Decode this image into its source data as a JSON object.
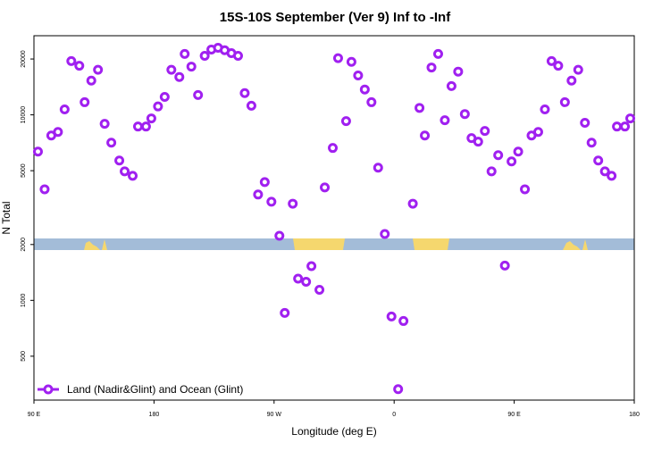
{
  "chart_data": {
    "type": "scatter",
    "title": "15S-10S September (Ver 9)   Inf to -Inf",
    "x_label": "Longitude (deg E)",
    "y_label": "N Total",
    "log_y": true,
    "legend": "bottom-left",
    "xlim": [
      90,
      540
    ],
    "xticks": [
      {
        "value": 90,
        "label": "90 E"
      },
      {
        "value": 180,
        "label": "180"
      },
      {
        "value": 270,
        "label": "90 W"
      },
      {
        "value": 360,
        "label": "0"
      },
      {
        "value": 450,
        "label": "90 E"
      },
      {
        "value": 540,
        "label": "180"
      }
    ],
    "ylim": [
      290,
      26700
    ],
    "yticks": [
      500,
      1000,
      2000,
      5000,
      10000,
      20000
    ],
    "x": [
      93,
      98,
      103,
      108,
      113,
      118,
      124,
      128,
      133,
      138,
      143,
      148,
      154,
      158,
      164,
      168,
      174,
      178,
      183,
      188,
      193,
      199,
      203,
      208,
      213,
      218,
      223,
      228,
      233,
      238,
      243,
      248,
      253,
      258,
      263,
      268,
      274,
      278,
      284,
      288,
      294,
      298,
      304,
      308,
      314,
      318,
      324,
      328,
      333,
      338,
      343,
      348,
      353,
      358,
      363,
      367,
      374,
      379,
      383,
      388,
      393,
      398,
      403,
      408,
      413,
      418,
      423,
      428,
      433,
      438,
      443,
      448,
      453,
      458,
      463,
      468,
      473,
      478,
      483,
      488,
      493,
      498,
      503,
      508,
      513,
      518,
      523,
      527,
      533,
      537
    ],
    "series": [
      {
        "name": "Land (Nadir&Glint) and Ocean (Glint)",
        "color": "#a020f0",
        "values": [
          6340,
          3970,
          7740,
          8090,
          10700,
          19500,
          18400,
          11700,
          15300,
          17500,
          8950,
          7080,
          5670,
          4960,
          4690,
          8650,
          8650,
          9570,
          11100,
          12500,
          17500,
          16000,
          21300,
          18200,
          12800,
          20800,
          22500,
          23000,
          22300,
          21500,
          20800,
          13100,
          11200,
          3720,
          4340,
          3400,
          2230,
          856,
          3320,
          1310,
          1260,
          1530,
          1140,
          4060,
          6630,
          20200,
          9250,
          19300,
          16300,
          13700,
          11700,
          5190,
          2280,
          819,
          332,
          774,
          3320,
          10900,
          7740,
          18000,
          21300,
          9350,
          14300,
          17100,
          10100,
          7490,
          7170,
          8190,
          4960,
          6060,
          1540,
          5610,
          6340,
          3970,
          7740,
          8090,
          10700,
          19500,
          18400,
          11700,
          15300,
          17500,
          9060,
          7080,
          5670,
          4960,
          4690,
          8650,
          8650,
          9570
        ]
      }
    ]
  }
}
